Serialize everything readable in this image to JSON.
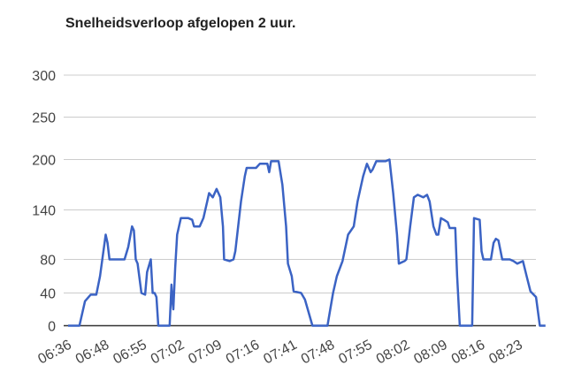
{
  "chart_data": {
    "type": "line",
    "title": "Snelheidsverloop afgelopen 2 uur.",
    "xlabel": "",
    "ylabel": "",
    "y_ticks": [
      0,
      40,
      80,
      140,
      200,
      250,
      300
    ],
    "ylim": [
      0,
      330
    ],
    "x_ticks": [
      "06:36",
      "06:48",
      "06:55",
      "07:02",
      "07:09",
      "07:16",
      "07:41",
      "07:48",
      "07:55",
      "08:02",
      "08:09",
      "08:16",
      "08:23"
    ],
    "grid": true,
    "legend": "none",
    "line_color": "#3b63c4",
    "grid_color": "#cccccc",
    "axis_color": "#333333",
    "series": [
      {
        "values": [
          [
            0,
            0
          ],
          [
            0.3,
            0
          ],
          [
            0.45,
            30
          ],
          [
            0.6,
            38
          ],
          [
            0.75,
            38
          ],
          [
            0.85,
            60
          ],
          [
            1.0,
            110
          ],
          [
            1.05,
            100
          ],
          [
            1.1,
            80
          ],
          [
            1.3,
            80
          ],
          [
            1.5,
            80
          ],
          [
            1.6,
            95
          ],
          [
            1.7,
            120
          ],
          [
            1.75,
            115
          ],
          [
            1.8,
            80
          ],
          [
            1.85,
            75
          ],
          [
            1.95,
            40
          ],
          [
            2.05,
            38
          ],
          [
            2.1,
            65
          ],
          [
            2.2,
            80
          ],
          [
            2.25,
            40
          ],
          [
            2.3,
            40
          ],
          [
            2.35,
            35
          ],
          [
            2.4,
            0
          ],
          [
            2.7,
            0
          ],
          [
            2.75,
            50
          ],
          [
            2.78,
            30
          ],
          [
            2.8,
            20
          ],
          [
            2.85,
            70
          ],
          [
            2.9,
            110
          ],
          [
            3.0,
            130
          ],
          [
            3.2,
            130
          ],
          [
            3.3,
            128
          ],
          [
            3.35,
            120
          ],
          [
            3.5,
            120
          ],
          [
            3.6,
            130
          ],
          [
            3.7,
            150
          ],
          [
            3.75,
            160
          ],
          [
            3.85,
            155
          ],
          [
            3.95,
            165
          ],
          [
            4.05,
            155
          ],
          [
            4.12,
            120
          ],
          [
            4.15,
            80
          ],
          [
            4.3,
            78
          ],
          [
            4.4,
            80
          ],
          [
            4.45,
            90
          ],
          [
            4.6,
            150
          ],
          [
            4.7,
            180
          ],
          [
            4.75,
            190
          ],
          [
            4.9,
            190
          ],
          [
            5.0,
            190
          ],
          [
            5.1,
            195
          ],
          [
            5.2,
            195
          ],
          [
            5.3,
            195
          ],
          [
            5.35,
            185
          ],
          [
            5.4,
            198
          ],
          [
            5.5,
            198
          ],
          [
            5.6,
            198
          ],
          [
            5.7,
            170
          ],
          [
            5.8,
            120
          ],
          [
            5.85,
            75
          ],
          [
            5.95,
            60
          ],
          [
            6.0,
            42
          ],
          [
            6.2,
            40
          ],
          [
            6.3,
            32
          ],
          [
            6.5,
            0
          ],
          [
            6.7,
            0
          ],
          [
            6.9,
            0
          ],
          [
            7.05,
            40
          ],
          [
            7.15,
            60
          ],
          [
            7.3,
            78
          ],
          [
            7.45,
            110
          ],
          [
            7.6,
            120
          ],
          [
            7.7,
            150
          ],
          [
            7.85,
            180
          ],
          [
            7.95,
            195
          ],
          [
            8.05,
            185
          ],
          [
            8.1,
            188
          ],
          [
            8.2,
            198
          ],
          [
            8.35,
            198
          ],
          [
            8.45,
            198
          ],
          [
            8.55,
            200
          ],
          [
            8.65,
            160
          ],
          [
            8.75,
            110
          ],
          [
            8.8,
            75
          ],
          [
            8.95,
            78
          ],
          [
            9.0,
            80
          ],
          [
            9.1,
            120
          ],
          [
            9.2,
            155
          ],
          [
            9.3,
            158
          ],
          [
            9.45,
            155
          ],
          [
            9.55,
            158
          ],
          [
            9.62,
            150
          ],
          [
            9.72,
            120
          ],
          [
            9.8,
            110
          ],
          [
            9.85,
            110
          ],
          [
            9.92,
            130
          ],
          [
            10.0,
            128
          ],
          [
            10.1,
            125
          ],
          [
            10.15,
            118
          ],
          [
            10.3,
            118
          ],
          [
            10.35,
            60
          ],
          [
            10.42,
            0
          ],
          [
            10.6,
            0
          ],
          [
            10.75,
            0
          ],
          [
            10.8,
            130
          ],
          [
            10.95,
            128
          ],
          [
            11.0,
            90
          ],
          [
            11.05,
            80
          ],
          [
            11.15,
            80
          ],
          [
            11.25,
            80
          ],
          [
            11.32,
            100
          ],
          [
            11.38,
            105
          ],
          [
            11.45,
            103
          ],
          [
            11.55,
            80
          ],
          [
            11.65,
            80
          ],
          [
            11.75,
            80
          ],
          [
            11.85,
            78
          ],
          [
            11.95,
            75
          ],
          [
            12.1,
            78
          ],
          [
            12.2,
            60
          ],
          [
            12.3,
            42
          ],
          [
            12.45,
            35
          ],
          [
            12.55,
            0
          ],
          [
            12.7,
            0
          ]
        ]
      }
    ]
  }
}
